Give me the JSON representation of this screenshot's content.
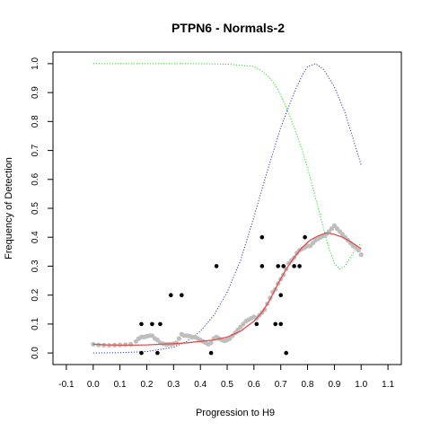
{
  "chart_data": {
    "type": "scatter",
    "title": "PTPN6 - Normals-2",
    "xlabel": "Progression to H9",
    "ylabel": "Frequency of Detection",
    "xlim": [
      -0.15,
      1.15
    ],
    "ylim": [
      -0.04,
      1.04
    ],
    "x_ticks": [
      -0.1,
      0.0,
      0.1,
      0.2,
      0.3,
      0.4,
      0.5,
      0.6,
      0.7,
      0.8,
      0.9,
      1.0,
      1.1
    ],
    "x_tick_labels": [
      "-0.1",
      "0.0",
      "0.1",
      "0.2",
      "0.3",
      "0.4",
      "0.5",
      "0.6",
      "0.7",
      "0.8",
      "0.9",
      "1.0",
      "1.1"
    ],
    "y_ticks": [
      0.0,
      0.1,
      0.2,
      0.3,
      0.4,
      0.5,
      0.6,
      0.7,
      0.8,
      0.9,
      1.0
    ],
    "y_tick_labels": [
      "0.0",
      "0.1",
      "0.2",
      "0.3",
      "0.4",
      "0.5",
      "0.6",
      "0.7",
      "0.8",
      "0.9",
      "1.0"
    ],
    "grid": false,
    "colors": {
      "observed_points": "#000000",
      "smoothed_points": "#bebebe",
      "fit_line": "#e0504f",
      "green_curve": "#22dd22",
      "blue_curve": "#3333cc"
    },
    "series": [
      {
        "kind": "observed_points",
        "points": [
          [
            0.18,
            0.1
          ],
          [
            0.18,
            0.0
          ],
          [
            0.22,
            0.1
          ],
          [
            0.25,
            0.1
          ],
          [
            0.24,
            0.0
          ],
          [
            0.29,
            0.2
          ],
          [
            0.33,
            0.2
          ],
          [
            0.44,
            0.0
          ],
          [
            0.46,
            0.3
          ],
          [
            0.61,
            0.1
          ],
          [
            0.63,
            0.3
          ],
          [
            0.63,
            0.4
          ],
          [
            0.68,
            0.1
          ],
          [
            0.69,
            0.3
          ],
          [
            0.7,
            0.1
          ],
          [
            0.7,
            0.2
          ],
          [
            0.71,
            0.3
          ],
          [
            0.72,
            0.0
          ],
          [
            0.75,
            0.3
          ],
          [
            0.77,
            0.3
          ],
          [
            0.79,
            0.4
          ]
        ]
      },
      {
        "kind": "smoothed_points",
        "points": [
          [
            0.0,
            0.03
          ],
          [
            0.02,
            0.028
          ],
          [
            0.04,
            0.027
          ],
          [
            0.06,
            0.026
          ],
          [
            0.08,
            0.027
          ],
          [
            0.1,
            0.028
          ],
          [
            0.12,
            0.029
          ],
          [
            0.14,
            0.03
          ],
          [
            0.16,
            0.04
          ],
          [
            0.17,
            0.05
          ],
          [
            0.18,
            0.055
          ],
          [
            0.19,
            0.055
          ],
          [
            0.2,
            0.058
          ],
          [
            0.21,
            0.06
          ],
          [
            0.22,
            0.06
          ],
          [
            0.23,
            0.05
          ],
          [
            0.24,
            0.045
          ],
          [
            0.25,
            0.035
          ],
          [
            0.26,
            0.032
          ],
          [
            0.27,
            0.03
          ],
          [
            0.28,
            0.03
          ],
          [
            0.29,
            0.03
          ],
          [
            0.3,
            0.032
          ],
          [
            0.31,
            0.035
          ],
          [
            0.32,
            0.05
          ],
          [
            0.33,
            0.065
          ],
          [
            0.34,
            0.06
          ],
          [
            0.35,
            0.06
          ],
          [
            0.36,
            0.058
          ],
          [
            0.37,
            0.055
          ],
          [
            0.38,
            0.055
          ],
          [
            0.39,
            0.05
          ],
          [
            0.4,
            0.045
          ],
          [
            0.41,
            0.04
          ],
          [
            0.42,
            0.035
          ],
          [
            0.43,
            0.03
          ],
          [
            0.44,
            0.035
          ],
          [
            0.45,
            0.05
          ],
          [
            0.46,
            0.055
          ],
          [
            0.47,
            0.05
          ],
          [
            0.48,
            0.045
          ],
          [
            0.49,
            0.042
          ],
          [
            0.5,
            0.045
          ],
          [
            0.51,
            0.05
          ],
          [
            0.52,
            0.06
          ],
          [
            0.53,
            0.07
          ],
          [
            0.54,
            0.08
          ],
          [
            0.55,
            0.09
          ],
          [
            0.56,
            0.1
          ],
          [
            0.57,
            0.11
          ],
          [
            0.58,
            0.115
          ],
          [
            0.59,
            0.12
          ],
          [
            0.6,
            0.125
          ],
          [
            0.61,
            0.12
          ],
          [
            0.62,
            0.13
          ],
          [
            0.63,
            0.14
          ],
          [
            0.64,
            0.15
          ],
          [
            0.65,
            0.17
          ],
          [
            0.66,
            0.19
          ],
          [
            0.67,
            0.21
          ],
          [
            0.68,
            0.22
          ],
          [
            0.69,
            0.24
          ],
          [
            0.7,
            0.255
          ],
          [
            0.71,
            0.27
          ],
          [
            0.72,
            0.29
          ],
          [
            0.73,
            0.31
          ],
          [
            0.74,
            0.32
          ],
          [
            0.75,
            0.33
          ],
          [
            0.76,
            0.345
          ],
          [
            0.77,
            0.355
          ],
          [
            0.78,
            0.36
          ],
          [
            0.79,
            0.365
          ],
          [
            0.8,
            0.37
          ],
          [
            0.81,
            0.37
          ],
          [
            0.82,
            0.38
          ],
          [
            0.83,
            0.39
          ],
          [
            0.84,
            0.395
          ],
          [
            0.85,
            0.4
          ],
          [
            0.86,
            0.405
          ],
          [
            0.87,
            0.41
          ],
          [
            0.88,
            0.42
          ],
          [
            0.89,
            0.43
          ],
          [
            0.9,
            0.44
          ],
          [
            0.91,
            0.43
          ],
          [
            0.92,
            0.42
          ],
          [
            0.93,
            0.41
          ],
          [
            0.94,
            0.4
          ],
          [
            0.95,
            0.39
          ],
          [
            0.96,
            0.38
          ],
          [
            0.97,
            0.37
          ],
          [
            0.98,
            0.365
          ],
          [
            0.99,
            0.355
          ],
          [
            1.0,
            0.34
          ]
        ]
      },
      {
        "kind": "fit_line",
        "points": [
          [
            0.0,
            0.03
          ],
          [
            0.05,
            0.028
          ],
          [
            0.1,
            0.027
          ],
          [
            0.15,
            0.027
          ],
          [
            0.2,
            0.028
          ],
          [
            0.25,
            0.03
          ],
          [
            0.3,
            0.032
          ],
          [
            0.35,
            0.035
          ],
          [
            0.4,
            0.04
          ],
          [
            0.45,
            0.045
          ],
          [
            0.5,
            0.055
          ],
          [
            0.55,
            0.075
          ],
          [
            0.6,
            0.11
          ],
          [
            0.63,
            0.14
          ],
          [
            0.66,
            0.185
          ],
          [
            0.69,
            0.24
          ],
          [
            0.72,
            0.29
          ],
          [
            0.75,
            0.33
          ],
          [
            0.78,
            0.365
          ],
          [
            0.81,
            0.39
          ],
          [
            0.84,
            0.405
          ],
          [
            0.87,
            0.415
          ],
          [
            0.9,
            0.41
          ],
          [
            0.93,
            0.4
          ],
          [
            0.96,
            0.385
          ],
          [
            1.0,
            0.36
          ]
        ]
      },
      {
        "kind": "green_curve",
        "points": [
          [
            0.0,
            1.0
          ],
          [
            0.1,
            1.0
          ],
          [
            0.2,
            1.0
          ],
          [
            0.3,
            1.0
          ],
          [
            0.4,
            1.0
          ],
          [
            0.5,
            0.998
          ],
          [
            0.55,
            0.995
          ],
          [
            0.6,
            0.99
          ],
          [
            0.63,
            0.975
          ],
          [
            0.66,
            0.95
          ],
          [
            0.69,
            0.91
          ],
          [
            0.72,
            0.85
          ],
          [
            0.75,
            0.78
          ],
          [
            0.78,
            0.7
          ],
          [
            0.8,
            0.64
          ],
          [
            0.82,
            0.57
          ],
          [
            0.84,
            0.5
          ],
          [
            0.86,
            0.43
          ],
          [
            0.88,
            0.36
          ],
          [
            0.9,
            0.31
          ],
          [
            0.92,
            0.29
          ],
          [
            0.94,
            0.3
          ],
          [
            0.96,
            0.33
          ],
          [
            0.98,
            0.36
          ],
          [
            1.0,
            0.38
          ]
        ]
      },
      {
        "kind": "blue_curve",
        "points": [
          [
            0.0,
            0.0
          ],
          [
            0.1,
            0.001
          ],
          [
            0.2,
            0.005
          ],
          [
            0.3,
            0.02
          ],
          [
            0.35,
            0.04
          ],
          [
            0.4,
            0.075
          ],
          [
            0.45,
            0.13
          ],
          [
            0.5,
            0.21
          ],
          [
            0.55,
            0.32
          ],
          [
            0.6,
            0.47
          ],
          [
            0.65,
            0.63
          ],
          [
            0.7,
            0.78
          ],
          [
            0.75,
            0.9
          ],
          [
            0.78,
            0.96
          ],
          [
            0.8,
            0.99
          ],
          [
            0.83,
            1.0
          ],
          [
            0.86,
            0.98
          ],
          [
            0.9,
            0.92
          ],
          [
            0.94,
            0.83
          ],
          [
            0.97,
            0.74
          ],
          [
            1.0,
            0.65
          ]
        ]
      }
    ]
  }
}
